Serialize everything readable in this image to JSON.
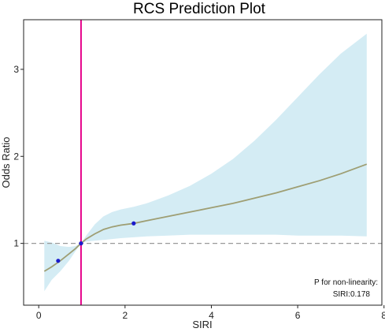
{
  "chart_data": {
    "type": "line",
    "title": "RCS Prediction Plot",
    "xlabel": "SIRI",
    "ylabel": "Odds Ratio",
    "xlim": [
      -0.35,
      7.95
    ],
    "ylim": [
      0.29,
      3.57
    ],
    "x_ticks": [
      0,
      2,
      4,
      6,
      8
    ],
    "y_ticks": [
      1,
      2,
      3
    ],
    "x_tick_labels": [
      "0",
      "2",
      "4",
      "6",
      "8"
    ],
    "y_tick_labels": [
      "1",
      "2",
      "3"
    ],
    "grid": false,
    "reference_line": {
      "y": 1,
      "style": "dashed",
      "color": "#999999"
    },
    "vertical_line": {
      "x": 0.98,
      "color": "#e6008a"
    },
    "series": [
      {
        "type": "line",
        "color": "#9e9e73",
        "x": [
          0.13,
          0.3,
          0.5,
          0.7,
          0.85,
          0.98,
          1.1,
          1.3,
          1.5,
          1.7,
          1.9,
          2.2,
          2.5,
          3.0,
          3.5,
          4.0,
          4.5,
          5.0,
          5.5,
          6.0,
          6.5,
          7.0,
          7.6
        ],
        "y": [
          0.68,
          0.73,
          0.8,
          0.88,
          0.94,
          1.0,
          1.05,
          1.11,
          1.16,
          1.19,
          1.21,
          1.23,
          1.26,
          1.31,
          1.36,
          1.41,
          1.46,
          1.52,
          1.58,
          1.65,
          1.72,
          1.8,
          1.91
        ]
      }
    ],
    "confidence_band": {
      "color": "#d4ecf4",
      "x": [
        0.13,
        0.3,
        0.5,
        0.7,
        0.85,
        0.98,
        1.1,
        1.3,
        1.5,
        1.7,
        1.9,
        2.2,
        2.5,
        3.0,
        3.5,
        4.0,
        4.5,
        5.0,
        5.5,
        6.0,
        6.5,
        7.0,
        7.6
      ],
      "lower": [
        0.45,
        0.58,
        0.68,
        0.8,
        0.91,
        1.0,
        1.02,
        1.03,
        1.04,
        1.05,
        1.06,
        1.07,
        1.08,
        1.09,
        1.1,
        1.1,
        1.1,
        1.1,
        1.1,
        1.09,
        1.09,
        1.09,
        1.08
      ],
      "upper": [
        1.03,
        1.01,
        0.97,
        0.96,
        0.97,
        1.0,
        1.09,
        1.22,
        1.31,
        1.36,
        1.39,
        1.42,
        1.46,
        1.55,
        1.66,
        1.8,
        1.97,
        2.18,
        2.42,
        2.68,
        2.94,
        3.18,
        3.41
      ]
    },
    "points": {
      "color": "#1a1acc",
      "x": [
        0.45,
        0.98,
        2.2
      ],
      "y": [
        0.8,
        1.0,
        1.23
      ]
    },
    "annotation": {
      "line1": "P for non-linearity:",
      "line2": "SIRI:0.178"
    }
  }
}
